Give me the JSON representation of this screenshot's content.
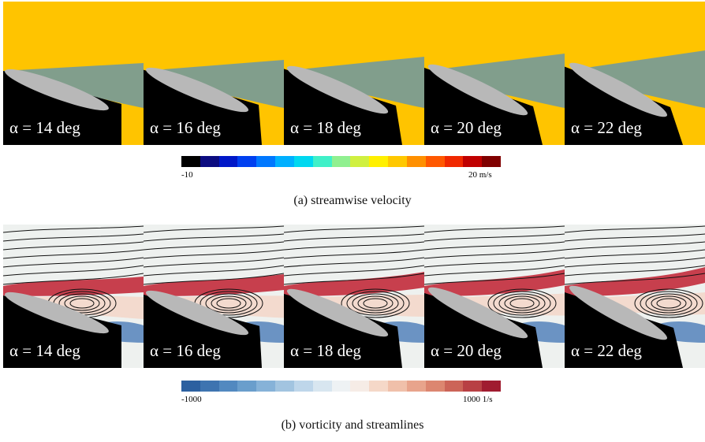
{
  "figure": {
    "row_a": {
      "panels": [
        {
          "alpha": "α = 14 deg",
          "angle": 14
        },
        {
          "alpha": "α = 16 deg",
          "angle": 16
        },
        {
          "alpha": "α = 18 deg",
          "angle": 18
        },
        {
          "alpha": "α = 20 deg",
          "angle": 20
        },
        {
          "alpha": "α = 22 deg",
          "angle": 22
        }
      ],
      "colorbar": {
        "min_label": "-10",
        "max_label": "20 m/s",
        "colors": [
          "#000000",
          "#0c0c80",
          "#0018c8",
          "#0040f0",
          "#0078ff",
          "#00b0ff",
          "#00d8f0",
          "#40f0c8",
          "#90f090",
          "#d0f040",
          "#fff000",
          "#ffc800",
          "#ff9000",
          "#ff5800",
          "#f02800",
          "#c00000",
          "#800000"
        ]
      },
      "caption": "(a)  streamwise velocity"
    },
    "row_b": {
      "panels": [
        {
          "alpha": "α = 14 deg",
          "angle": 14
        },
        {
          "alpha": "α = 16 deg",
          "angle": 16
        },
        {
          "alpha": "α = 18 deg",
          "angle": 18
        },
        {
          "alpha": "α = 20 deg",
          "angle": 20
        },
        {
          "alpha": "α = 22 deg",
          "angle": 22
        }
      ],
      "colorbar": {
        "min_label": "-1000",
        "max_label": "1000 1/s",
        "colors": [
          "#2c60a0",
          "#3e74b0",
          "#5289c0",
          "#6a9ecc",
          "#86b2d8",
          "#a2c4e0",
          "#bed6ea",
          "#d8e6f0",
          "#eef2f4",
          "#f6ece6",
          "#f5d8c8",
          "#f0c0aa",
          "#e8a48c",
          "#dc8670",
          "#cc6458",
          "#b84044",
          "#a01c30"
        ]
      },
      "caption": "(b)  vorticity and streamlines"
    }
  }
}
